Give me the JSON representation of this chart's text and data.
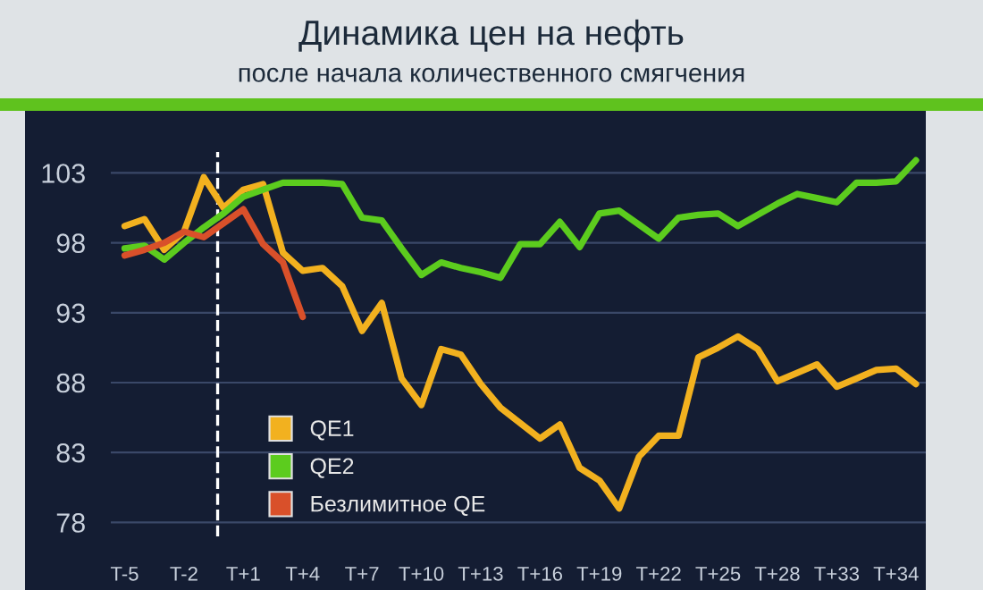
{
  "chart_data": {
    "type": "line",
    "title": "Динамика цен на нефть",
    "subtitle": "после начала количественного смягчения",
    "categories": [
      "T-5",
      null,
      null,
      "T-2",
      null,
      null,
      "T+1",
      null,
      null,
      "T+4",
      null,
      null,
      "T+7",
      null,
      null,
      "T+10",
      null,
      null,
      "T+13",
      null,
      null,
      "T+16",
      null,
      null,
      "T+19",
      null,
      null,
      "T+22",
      null,
      null,
      "T+25",
      null,
      null,
      "T+28",
      null,
      null,
      "T+33",
      null,
      null,
      "T+34",
      null
    ],
    "ylim": [
      77,
      104.5
    ],
    "yticks": [
      78,
      83,
      88,
      93,
      98,
      103
    ],
    "grid": "y",
    "legend": "bottom left",
    "line_style": "solid",
    "marker": "none",
    "series": [
      {
        "name": "QE1",
        "color": "#f2b11f",
        "values": [
          99.2,
          99.7,
          97.5,
          98.8,
          102.7,
          100.5,
          101.8,
          102.2,
          97.3,
          96.0,
          96.2,
          94.9,
          91.7,
          93.7,
          88.3,
          86.4,
          90.4,
          90.0,
          87.9,
          86.2,
          85.1,
          84.0,
          85.0,
          81.9,
          81.0,
          79.0,
          82.7,
          84.2,
          84.2,
          89.8,
          90.5,
          91.3,
          90.4,
          88.1,
          88.7,
          89.3,
          87.7,
          88.3,
          88.9,
          89.0,
          87.9
        ]
      },
      {
        "name": "QE2",
        "color": "#5ccc1e",
        "values": [
          97.6,
          97.8,
          96.8,
          98.0,
          99.1,
          100.1,
          101.3,
          101.8,
          102.3,
          102.3,
          102.3,
          102.2,
          99.8,
          99.6,
          97.6,
          95.7,
          96.6,
          96.2,
          95.9,
          95.5,
          97.9,
          97.9,
          99.5,
          97.7,
          100.1,
          100.3,
          99.3,
          98.3,
          99.8,
          100.0,
          100.1,
          99.2,
          100.0,
          100.8,
          101.5,
          101.2,
          100.9,
          102.3,
          102.3,
          102.4,
          103.9
        ]
      },
      {
        "name": "Безлимитное QE",
        "color": "#d9502a",
        "values": [
          97.1,
          97.5,
          98.0,
          98.8,
          98.4,
          99.4,
          100.4,
          97.9,
          96.6,
          92.7,
          null,
          null,
          null,
          null,
          null,
          null,
          null,
          null,
          null,
          null,
          null,
          null,
          null,
          null,
          null,
          null,
          null,
          null,
          null,
          null,
          null,
          null,
          null,
          null,
          null,
          null,
          null,
          null,
          null,
          null,
          null
        ]
      }
    ]
  }
}
